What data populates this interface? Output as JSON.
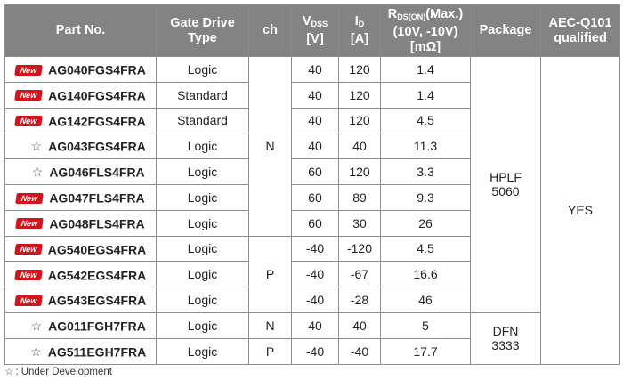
{
  "header": {
    "part_no": "Part No.",
    "gate_drive_line1": "Gate Drive",
    "gate_drive_line2": "Type",
    "ch": "ch",
    "vdss_main": "V",
    "vdss_sub": "DSS",
    "vdss_unit": "[V]",
    "id_main": "I",
    "id_sub": "D",
    "id_unit": "[A]",
    "rds_main": "R",
    "rds_sub": "DS(ON)",
    "rds_max": "(Max.)",
    "rds_line2": "(10V, -10V)",
    "rds_unit": "[mΩ]",
    "package": "Package",
    "aec_line1": "AEC-Q101",
    "aec_line2": "qualified"
  },
  "badges": {
    "new": "New",
    "star": "☆"
  },
  "rows": [
    {
      "status": "new",
      "part": "AG040FGS4FRA",
      "gate": "Logic",
      "vdss": "40",
      "id": "120",
      "rds": "1.4"
    },
    {
      "status": "new",
      "part": "AG140FGS4FRA",
      "gate": "Standard",
      "vdss": "40",
      "id": "120",
      "rds": "1.4"
    },
    {
      "status": "new",
      "part": "AG142FGS4FRA",
      "gate": "Standard",
      "vdss": "40",
      "id": "120",
      "rds": "4.5"
    },
    {
      "status": "star",
      "part": "AG043FGS4FRA",
      "gate": "Logic",
      "vdss": "40",
      "id": "40",
      "rds": "11.3"
    },
    {
      "status": "star",
      "part": "AG046FLS4FRA",
      "gate": "Logic",
      "vdss": "60",
      "id": "120",
      "rds": "3.3"
    },
    {
      "status": "new",
      "part": "AG047FLS4FRA",
      "gate": "Logic",
      "vdss": "60",
      "id": "89",
      "rds": "9.3"
    },
    {
      "status": "new",
      "part": "AG048FLS4FRA",
      "gate": "Logic",
      "vdss": "60",
      "id": "30",
      "rds": "26"
    },
    {
      "status": "new",
      "part": "AG540EGS4FRA",
      "gate": "Logic",
      "vdss": "-40",
      "id": "-120",
      "rds": "4.5"
    },
    {
      "status": "new",
      "part": "AG542EGS4FRA",
      "gate": "Logic",
      "vdss": "-40",
      "id": "-67",
      "rds": "16.6"
    },
    {
      "status": "new",
      "part": "AG543EGS4FRA",
      "gate": "Logic",
      "vdss": "-40",
      "id": "-28",
      "rds": "46"
    },
    {
      "status": "star",
      "part": "AG011FGH7FRA",
      "gate": "Logic",
      "vdss": "40",
      "id": "40",
      "rds": "5"
    },
    {
      "status": "star",
      "part": "AG511EGH7FRA",
      "gate": "Logic",
      "vdss": "-40",
      "id": "-40",
      "rds": "17.7"
    }
  ],
  "groups": {
    "ch_n1": "N",
    "ch_p1": "P",
    "ch_n2": "N",
    "ch_p2": "P",
    "pkg1_line1": "HPLF",
    "pkg1_line2": "5060",
    "pkg2_line1": "DFN",
    "pkg2_line2": "3333",
    "aec": "YES"
  },
  "legend": {
    "star": "☆",
    "text": ": Under Development"
  },
  "colors": {
    "header_bg": "#838383",
    "new_badge": "#d4141a",
    "border": "#8d8d8d"
  }
}
